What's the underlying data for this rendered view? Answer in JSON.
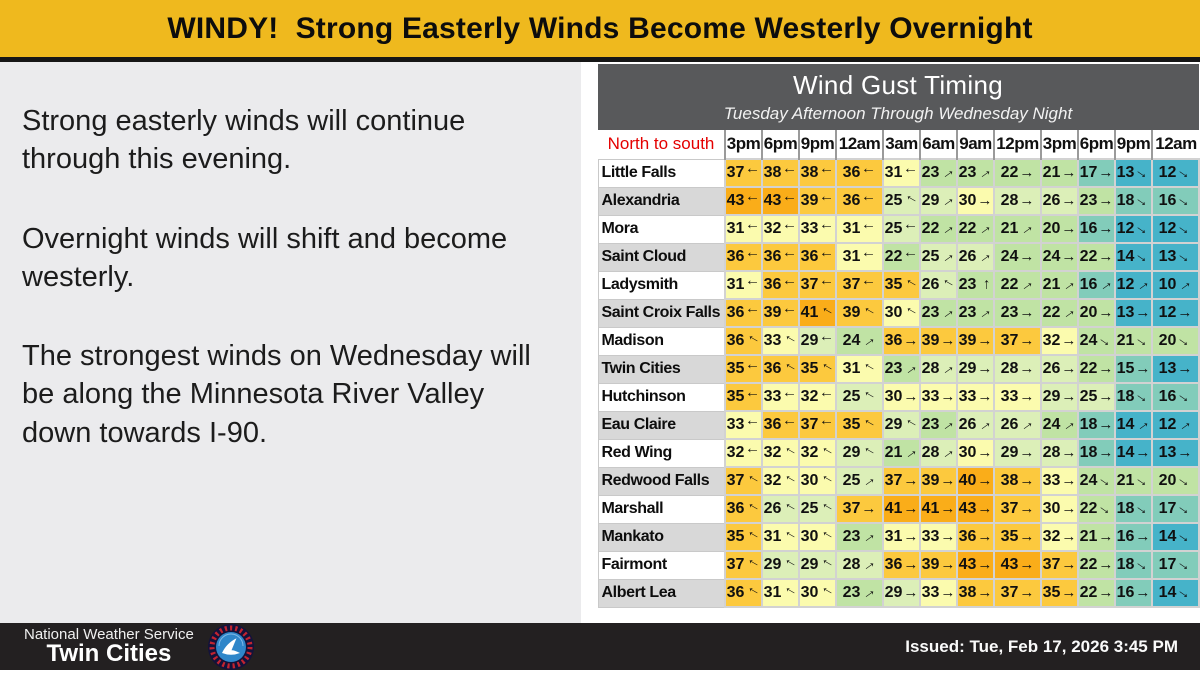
{
  "banner": {
    "title": "WINDY!  Strong Easterly Winds Become Westerly Overnight",
    "bg_color": "#efb91e"
  },
  "left_panel": {
    "paragraphs": [
      "Strong easterly winds will continue through this evening.",
      "Overnight winds will shift and become westerly.",
      "The strongest winds on Wednesday will be along the Minnesota River Valley down towards I-90."
    ]
  },
  "wind_table": {
    "title": "Wind Gust Timing",
    "subtitle": "Tuesday Afternoon Through Wednesday Night"
  },
  "chart_data": {
    "type": "heatmap",
    "title": "Wind Gust Timing",
    "subtitle": "Tuesday Afternoon Through Wednesday Night",
    "corner_label": "North to south",
    "columns": [
      "3pm",
      "6pm",
      "9pm",
      "12am",
      "3am",
      "6am",
      "9am",
      "12pm",
      "3pm",
      "6pm",
      "9pm",
      "12am"
    ],
    "rows": [
      {
        "city": "Little Falls",
        "cells": [
          [
            37,
            "L"
          ],
          [
            38,
            "L"
          ],
          [
            38,
            "L"
          ],
          [
            36,
            "L"
          ],
          [
            31,
            "L"
          ],
          [
            23,
            "UR"
          ],
          [
            23,
            "UR"
          ],
          [
            22,
            "R"
          ],
          [
            21,
            "R"
          ],
          [
            17,
            "R"
          ],
          [
            13,
            "DR"
          ],
          [
            12,
            "DR"
          ]
        ]
      },
      {
        "city": "Alexandria",
        "cells": [
          [
            43,
            "L"
          ],
          [
            43,
            "L"
          ],
          [
            39,
            "L"
          ],
          [
            36,
            "L"
          ],
          [
            25,
            "UL"
          ],
          [
            29,
            "UR"
          ],
          [
            30,
            "R"
          ],
          [
            28,
            "R"
          ],
          [
            26,
            "R"
          ],
          [
            23,
            "R"
          ],
          [
            18,
            "DR"
          ],
          [
            16,
            "DR"
          ]
        ]
      },
      {
        "city": "Mora",
        "cells": [
          [
            31,
            "L"
          ],
          [
            32,
            "L"
          ],
          [
            33,
            "L"
          ],
          [
            31,
            "L"
          ],
          [
            25,
            "L"
          ],
          [
            22,
            "UR"
          ],
          [
            22,
            "UR"
          ],
          [
            21,
            "UR"
          ],
          [
            20,
            "R"
          ],
          [
            16,
            "R"
          ],
          [
            12,
            "DR"
          ],
          [
            12,
            "DR"
          ]
        ]
      },
      {
        "city": "Saint Cloud",
        "cells": [
          [
            36,
            "L"
          ],
          [
            36,
            "L"
          ],
          [
            36,
            "L"
          ],
          [
            31,
            "L"
          ],
          [
            22,
            "L"
          ],
          [
            25,
            "UR"
          ],
          [
            26,
            "UR"
          ],
          [
            24,
            "R"
          ],
          [
            24,
            "R"
          ],
          [
            22,
            "R"
          ],
          [
            14,
            "DR"
          ],
          [
            13,
            "DR"
          ]
        ]
      },
      {
        "city": "Ladysmith",
        "cells": [
          [
            31,
            "L"
          ],
          [
            36,
            "L"
          ],
          [
            37,
            "L"
          ],
          [
            37,
            "L"
          ],
          [
            35,
            "UL"
          ],
          [
            26,
            "UL"
          ],
          [
            23,
            "U"
          ],
          [
            22,
            "UR"
          ],
          [
            21,
            "UR"
          ],
          [
            16,
            "UR"
          ],
          [
            12,
            "UR"
          ],
          [
            10,
            "UR"
          ]
        ]
      },
      {
        "city": "Saint Croix Falls",
        "cells": [
          [
            36,
            "L"
          ],
          [
            39,
            "L"
          ],
          [
            41,
            "UL"
          ],
          [
            39,
            "UL"
          ],
          [
            30,
            "UL"
          ],
          [
            23,
            "UR"
          ],
          [
            23,
            "UR"
          ],
          [
            23,
            "R"
          ],
          [
            22,
            "UR"
          ],
          [
            20,
            "R"
          ],
          [
            13,
            "R"
          ],
          [
            12,
            "R"
          ]
        ]
      },
      {
        "city": "Madison",
        "cells": [
          [
            36,
            "UL"
          ],
          [
            33,
            "UL"
          ],
          [
            29,
            "L"
          ],
          [
            24,
            "UR"
          ],
          [
            36,
            "R"
          ],
          [
            39,
            "R"
          ],
          [
            39,
            "R"
          ],
          [
            37,
            "R"
          ],
          [
            32,
            "R"
          ],
          [
            24,
            "DR"
          ],
          [
            21,
            "DR"
          ],
          [
            20,
            "DR"
          ]
        ]
      },
      {
        "city": "Twin Cities",
        "cells": [
          [
            35,
            "L"
          ],
          [
            36,
            "UL"
          ],
          [
            35,
            "UL"
          ],
          [
            31,
            "UL"
          ],
          [
            23,
            "UR"
          ],
          [
            28,
            "UR"
          ],
          [
            29,
            "R"
          ],
          [
            28,
            "R"
          ],
          [
            26,
            "R"
          ],
          [
            22,
            "R"
          ],
          [
            15,
            "R"
          ],
          [
            13,
            "R"
          ]
        ]
      },
      {
        "city": "Hutchinson",
        "cells": [
          [
            35,
            "L"
          ],
          [
            33,
            "L"
          ],
          [
            32,
            "L"
          ],
          [
            25,
            "UL"
          ],
          [
            30,
            "R"
          ],
          [
            33,
            "R"
          ],
          [
            33,
            "R"
          ],
          [
            33,
            "R"
          ],
          [
            29,
            "R"
          ],
          [
            25,
            "R"
          ],
          [
            18,
            "DR"
          ],
          [
            16,
            "DR"
          ]
        ]
      },
      {
        "city": "Eau Claire",
        "cells": [
          [
            33,
            "L"
          ],
          [
            36,
            "L"
          ],
          [
            37,
            "L"
          ],
          [
            35,
            "UL"
          ],
          [
            29,
            "UL"
          ],
          [
            23,
            "UR"
          ],
          [
            26,
            "UR"
          ],
          [
            26,
            "UR"
          ],
          [
            24,
            "UR"
          ],
          [
            18,
            "R"
          ],
          [
            14,
            "UR"
          ],
          [
            12,
            "UR"
          ]
        ]
      },
      {
        "city": "Red Wing",
        "cells": [
          [
            32,
            "L"
          ],
          [
            32,
            "UL"
          ],
          [
            32,
            "UL"
          ],
          [
            29,
            "UL"
          ],
          [
            21,
            "UR"
          ],
          [
            28,
            "UR"
          ],
          [
            30,
            "R"
          ],
          [
            29,
            "R"
          ],
          [
            28,
            "R"
          ],
          [
            18,
            "R"
          ],
          [
            14,
            "R"
          ],
          [
            13,
            "R"
          ]
        ]
      },
      {
        "city": "Redwood Falls",
        "cells": [
          [
            37,
            "UL"
          ],
          [
            32,
            "UL"
          ],
          [
            30,
            "UL"
          ],
          [
            25,
            "UR"
          ],
          [
            37,
            "R"
          ],
          [
            39,
            "R"
          ],
          [
            40,
            "R"
          ],
          [
            38,
            "R"
          ],
          [
            33,
            "R"
          ],
          [
            24,
            "DR"
          ],
          [
            21,
            "DR"
          ],
          [
            20,
            "DR"
          ]
        ]
      },
      {
        "city": "Marshall",
        "cells": [
          [
            36,
            "UL"
          ],
          [
            26,
            "UL"
          ],
          [
            25,
            "UL"
          ],
          [
            37,
            "R"
          ],
          [
            41,
            "R"
          ],
          [
            41,
            "R"
          ],
          [
            43,
            "R"
          ],
          [
            37,
            "R"
          ],
          [
            30,
            "R"
          ],
          [
            22,
            "DR"
          ],
          [
            18,
            "DR"
          ],
          [
            17,
            "DR"
          ]
        ]
      },
      {
        "city": "Mankato",
        "cells": [
          [
            35,
            "UL"
          ],
          [
            31,
            "UL"
          ],
          [
            30,
            "UL"
          ],
          [
            23,
            "UR"
          ],
          [
            31,
            "R"
          ],
          [
            33,
            "R"
          ],
          [
            36,
            "R"
          ],
          [
            35,
            "R"
          ],
          [
            32,
            "R"
          ],
          [
            21,
            "R"
          ],
          [
            16,
            "R"
          ],
          [
            14,
            "DR"
          ]
        ]
      },
      {
        "city": "Fairmont",
        "cells": [
          [
            37,
            "UL"
          ],
          [
            29,
            "UL"
          ],
          [
            29,
            "UL"
          ],
          [
            28,
            "UR"
          ],
          [
            36,
            "R"
          ],
          [
            39,
            "R"
          ],
          [
            43,
            "R"
          ],
          [
            43,
            "R"
          ],
          [
            37,
            "R"
          ],
          [
            22,
            "R"
          ],
          [
            18,
            "DR"
          ],
          [
            17,
            "DR"
          ]
        ]
      },
      {
        "city": "Albert Lea",
        "cells": [
          [
            36,
            "UL"
          ],
          [
            31,
            "UL"
          ],
          [
            30,
            "UL"
          ],
          [
            23,
            "UR"
          ],
          [
            29,
            "R"
          ],
          [
            33,
            "R"
          ],
          [
            38,
            "R"
          ],
          [
            37,
            "R"
          ],
          [
            35,
            "R"
          ],
          [
            22,
            "R"
          ],
          [
            16,
            "R"
          ],
          [
            14,
            "DR"
          ]
        ]
      }
    ],
    "color_bins": [
      {
        "min": 40,
        "color": "#faad19"
      },
      {
        "min": 35,
        "color": "#fcc93e"
      },
      {
        "min": 30,
        "color": "#fbfbae"
      },
      {
        "min": 25,
        "color": "#dcefb8"
      },
      {
        "min": 20,
        "color": "#c0e3a4"
      },
      {
        "min": 15,
        "color": "#82ccba"
      },
      {
        "min": 0,
        "color": "#46b3c9"
      }
    ]
  },
  "footer": {
    "agency": "National Weather Service",
    "office": "Twin Cities",
    "issued": "Issued: Tue, Feb 17, 2026 3:45 PM"
  }
}
